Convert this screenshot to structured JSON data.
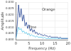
{
  "chart_data": {
    "type": "line",
    "x_label": "Frequency (Hz)",
    "y_label": "Amplitude",
    "x": [
      0,
      0.5,
      1,
      1.5,
      2,
      2.5,
      3,
      3.5,
      4,
      4.5,
      5,
      5.5,
      6,
      6.5,
      7,
      7.5,
      8,
      8.5,
      9,
      9.5,
      10,
      10.5,
      11,
      11.5,
      12,
      12.5,
      13,
      13.5,
      14,
      14.5,
      15,
      15.5,
      16,
      16.5,
      17,
      17.5,
      18,
      18.5,
      19,
      19.5,
      20
    ],
    "series": [
      {
        "name": "Orange",
        "color": "#1f3f8f",
        "values": [
          0.002,
          0.012,
          0.028,
          0.018,
          0.025,
          0.015,
          0.02,
          0.011,
          0.014,
          0.009,
          0.012,
          0.007,
          0.009,
          0.006,
          0.008,
          0.005,
          0.006,
          0.004,
          0.005,
          0.004,
          0.004,
          0.003,
          0.004,
          0.003,
          0.003,
          0.002,
          0.003,
          0.002,
          0.002,
          0.002,
          0.002,
          0.002,
          0.002,
          0.001,
          0.002,
          0.001,
          0.001,
          0.001,
          0.001,
          0.001,
          0.001
        ]
      },
      {
        "name": "Pine",
        "color": "#4fc3e8",
        "values": [
          0.001,
          0.006,
          0.01,
          0.008,
          0.009,
          0.006,
          0.007,
          0.005,
          0.006,
          0.004,
          0.005,
          0.003,
          0.004,
          0.003,
          0.003,
          0.002,
          0.003,
          0.002,
          0.002,
          0.002,
          0.002,
          0.001,
          0.002,
          0.001,
          0.001,
          0.001,
          0.001,
          0.001,
          0.001,
          0.001,
          0.001,
          0.001,
          0.001,
          0.001,
          0.001,
          0.001,
          0.001,
          0.001,
          0.001,
          0.001,
          0.001
        ]
      }
    ],
    "annotations": [
      {
        "text": "Orange",
        "x": 10,
        "y": 0.024
      },
      {
        "text": "Pine",
        "x": 5,
        "y": 0.01
      }
    ],
    "xlim": [
      0,
      20
    ],
    "xticks": [
      0,
      5,
      10,
      15,
      20
    ],
    "ylim": [
      0,
      0.03
    ],
    "yticks": [
      {
        "value": 0,
        "label": "0.000"
      },
      {
        "value": 0.005,
        "label": "0.005"
      },
      {
        "value": 0.01,
        "label": "0.010"
      },
      {
        "value": 0.015,
        "label": "0.015"
      },
      {
        "value": 0.02,
        "label": "0.020"
      },
      {
        "value": 0.025,
        "label": "0.025"
      },
      {
        "value": 0.03,
        "label": "0.030"
      }
    ],
    "grid": true
  }
}
